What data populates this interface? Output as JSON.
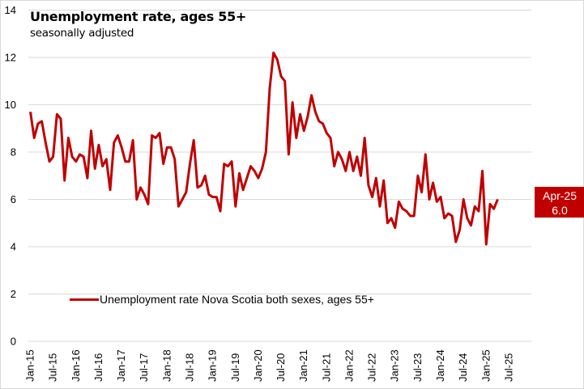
{
  "chart_data": {
    "type": "line",
    "title": "Unemployment rate, ages 55+",
    "subtitle": "seasonally adjusted",
    "xlabel": "",
    "ylabel": "",
    "ylim": [
      0,
      14
    ],
    "yticks": [
      0,
      2,
      4,
      6,
      8,
      10,
      12,
      14
    ],
    "grid": true,
    "legend_position": "bottom-left",
    "x_start": "Jan-15",
    "x_tick_labels": [
      "Jan-15",
      "Jul-15",
      "Jan-16",
      "Jul-16",
      "Jan-17",
      "Jul-17",
      "Jan-18",
      "Jul-18",
      "Jan-19",
      "Jul-19",
      "Jan-20",
      "Jul-20",
      "Jan-21",
      "Jul-21",
      "Jan-22",
      "Jul-22",
      "Jan-23",
      "Jul-23",
      "Jan-24",
      "Jul-24",
      "Jan-25",
      "Jul-25"
    ],
    "x_range_months": 126,
    "series": [
      {
        "name": "Unemployment rate Nova Scotia both sexes, ages 55+",
        "color": "#c00000",
        "values": [
          9.7,
          8.6,
          9.2,
          9.3,
          8.4,
          7.6,
          7.8,
          9.6,
          9.4,
          6.8,
          8.6,
          7.8,
          7.6,
          7.9,
          7.8,
          6.9,
          8.9,
          7.3,
          8.3,
          7.4,
          7.7,
          6.4,
          8.4,
          8.7,
          8.2,
          7.6,
          7.6,
          8.5,
          6.0,
          6.5,
          6.2,
          5.8,
          8.7,
          8.6,
          8.8,
          7.5,
          8.2,
          8.2,
          7.7,
          5.7,
          6.0,
          6.3,
          7.5,
          8.5,
          6.5,
          6.6,
          7.0,
          6.2,
          6.1,
          6.1,
          5.5,
          7.5,
          7.4,
          7.6,
          5.7,
          7.1,
          6.4,
          6.9,
          7.4,
          7.2,
          6.9,
          7.3,
          8.0,
          10.7,
          12.2,
          11.9,
          11.2,
          11.0,
          7.9,
          10.1,
          8.6,
          9.6,
          8.9,
          9.5,
          10.4,
          9.7,
          9.3,
          9.2,
          8.8,
          8.6,
          7.4,
          8.0,
          7.7,
          7.2,
          8.0,
          7.2,
          7.8,
          7.0,
          8.6,
          6.6,
          6.1,
          6.9,
          5.7,
          6.8,
          5.0,
          5.2,
          4.8,
          5.9,
          5.6,
          5.5,
          5.3,
          5.3,
          7.0,
          6.3,
          7.9,
          6.0,
          6.7,
          5.9,
          6.1,
          5.2,
          5.4,
          5.3,
          4.2,
          4.7,
          6.0,
          5.2,
          4.9,
          5.7,
          5.5,
          7.2,
          4.1,
          5.8,
          5.6,
          6.0
        ]
      }
    ],
    "annotations": [
      {
        "label": "Apr-25",
        "value": "6.0",
        "color": "#c00000"
      }
    ]
  },
  "legend": {
    "label": "Unemployment rate Nova Scotia both sexes, ages 55+"
  },
  "callout": {
    "date": "Apr-25",
    "value": "6.0"
  }
}
